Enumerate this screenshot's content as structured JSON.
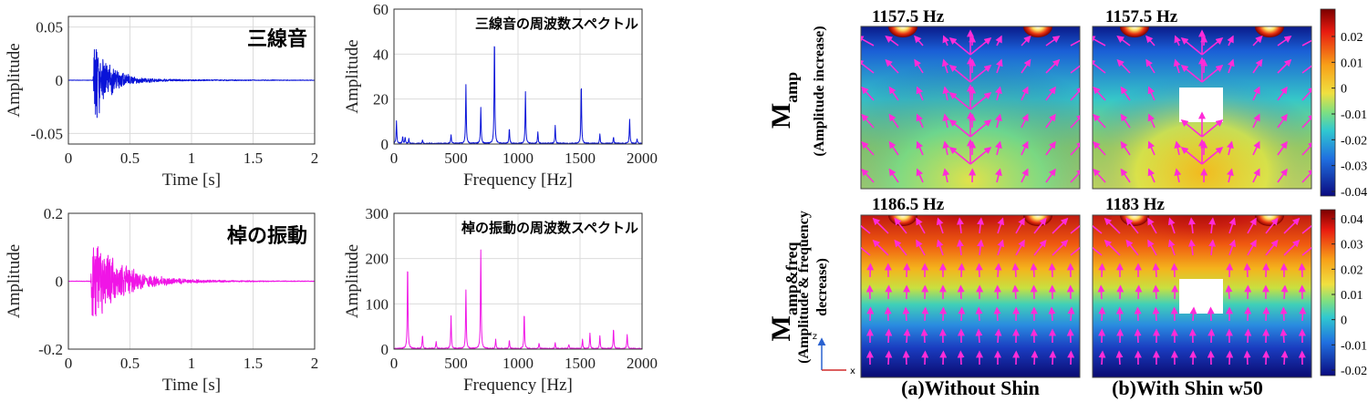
{
  "chart_data": [
    {
      "type": "line",
      "id": "shamisen-time",
      "title": "三線音",
      "xlabel": "Time [s]",
      "ylabel": "Amplitude",
      "xlim": [
        0,
        2
      ],
      "ylim": [
        -0.06,
        0.06
      ],
      "xticks": [
        "0",
        "0.5",
        "1",
        "1.5",
        "2"
      ],
      "yticks": [
        "0.05",
        "0",
        "-0.05"
      ],
      "color": "#0a14d8",
      "grid": true,
      "envelope": {
        "onset_s": 0.2,
        "peak": 0.045,
        "decay_s": 0.13
      }
    },
    {
      "type": "line",
      "id": "shamisen-spectrum",
      "title": "三線音の周波数スペクトル",
      "xlabel": "Frequency [Hz]",
      "ylabel": "Amplitude",
      "xlim": [
        0,
        2000
      ],
      "ylim": [
        0,
        60
      ],
      "xticks": [
        "0",
        "500",
        "1000",
        "1500",
        "2000"
      ],
      "yticks": [
        "60",
        "40",
        "20",
        "0"
      ],
      "color": "#0a14d8",
      "grid": true,
      "peaks": [
        [
          20,
          10
        ],
        [
          70,
          3
        ],
        [
          90,
          3
        ],
        [
          120,
          2
        ],
        [
          230,
          1.5
        ],
        [
          460,
          4
        ],
        [
          580,
          26
        ],
        [
          700,
          16
        ],
        [
          810,
          48
        ],
        [
          930,
          7
        ],
        [
          1060,
          23
        ],
        [
          1160,
          5
        ],
        [
          1300,
          8
        ],
        [
          1510,
          27
        ],
        [
          1660,
          4
        ],
        [
          1770,
          3
        ],
        [
          1900,
          11
        ],
        [
          1960,
          2
        ]
      ]
    },
    {
      "type": "line",
      "id": "sao-time",
      "title": "棹の振動",
      "xlabel": "Time [s]",
      "ylabel": "Amplitude",
      "xlim": [
        0,
        2
      ],
      "ylim": [
        -0.2,
        0.2
      ],
      "xticks": [
        "0",
        "0.5",
        "1",
        "1.5",
        "2"
      ],
      "yticks": [
        "0.2",
        "0",
        "-0.2"
      ],
      "color": "#f015e6",
      "grid": true,
      "envelope": {
        "onset_s": 0.18,
        "peak": 0.165,
        "decay_s": 0.22
      }
    },
    {
      "type": "line",
      "id": "sao-spectrum",
      "title": "棹の振動の周波数スペクトル",
      "xlabel": "Frequency [Hz]",
      "ylabel": "Amplitude",
      "xlim": [
        0,
        2000
      ],
      "ylim": [
        0,
        300
      ],
      "xticks": [
        "0",
        "500",
        "1000",
        "1500",
        "2000"
      ],
      "yticks": [
        "300",
        "200",
        "100",
        "0"
      ],
      "color": "#f015e6",
      "grid": true,
      "peaks": [
        [
          110,
          190
        ],
        [
          230,
          30
        ],
        [
          340,
          15
        ],
        [
          460,
          72
        ],
        [
          580,
          130
        ],
        [
          700,
          218
        ],
        [
          820,
          20
        ],
        [
          930,
          18
        ],
        [
          1050,
          80
        ],
        [
          1170,
          12
        ],
        [
          1300,
          14
        ],
        [
          1410,
          10
        ],
        [
          1520,
          20
        ],
        [
          1580,
          35
        ],
        [
          1660,
          28
        ],
        [
          1770,
          45
        ],
        [
          1880,
          32
        ]
      ]
    },
    {
      "type": "heatmap",
      "id": "vector-fields",
      "row_labels": [
        {
          "main": "M",
          "sub": "amp",
          "desc": "(Amplitude increase)"
        },
        {
          "main": "M",
          "sub": "amp&freq",
          "desc": "(Amplitude & frequency decrease)"
        }
      ],
      "column_labels": [
        "(a)Without Shin",
        "(b)With Shin w50"
      ],
      "panel_frequencies": [
        "1157.5 Hz",
        "1157.5 Hz",
        "1186.5 Hz",
        "1183 Hz"
      ],
      "colorbar_top": [
        "0.02",
        "0.01",
        "0",
        "-0.01",
        "-0.02",
        "-0.03",
        "-0.04"
      ],
      "colorbar_bottom": [
        "0.04",
        "0.03",
        "0.02",
        "0.01",
        "0",
        "-0.01",
        "-0.02"
      ],
      "axis_z": "z",
      "axis_x": "x",
      "arrow_color": "#ff2bd8"
    }
  ]
}
